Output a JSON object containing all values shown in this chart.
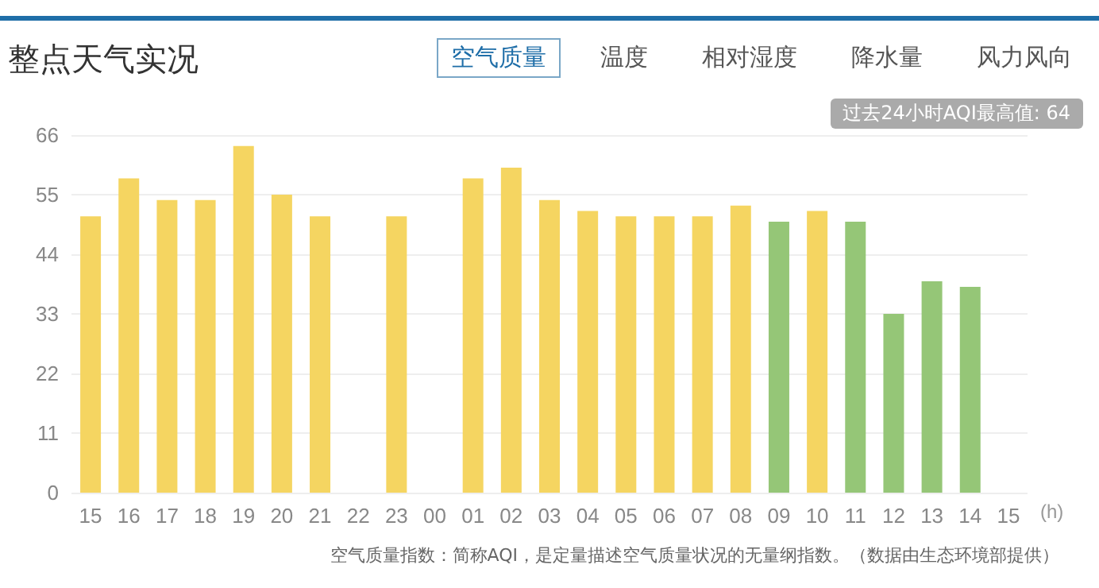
{
  "chart_data": {
    "type": "bar",
    "title": "整点天气实况",
    "xlabel": "(h)",
    "categories": [
      "15",
      "16",
      "17",
      "18",
      "19",
      "20",
      "21",
      "22",
      "23",
      "00",
      "01",
      "02",
      "03",
      "04",
      "05",
      "06",
      "07",
      "08",
      "09",
      "10",
      "11",
      "12",
      "13",
      "14",
      "15"
    ],
    "values": [
      51,
      58,
      54,
      54,
      64,
      55,
      51,
      null,
      51,
      null,
      58,
      60,
      54,
      52,
      51,
      51,
      51,
      53,
      50,
      52,
      50,
      33,
      39,
      38,
      null
    ],
    "colors": [
      "#f5d561",
      "#f5d561",
      "#f5d561",
      "#f5d561",
      "#f5d561",
      "#f5d561",
      "#f5d561",
      "#f5d561",
      "#f5d561",
      "#f5d561",
      "#f5d561",
      "#f5d561",
      "#f5d561",
      "#f5d561",
      "#f5d561",
      "#f5d561",
      "#f5d561",
      "#f5d561",
      "#95c677",
      "#f5d561",
      "#95c677",
      "#95c677",
      "#95c677",
      "#95c677",
      "#95c677"
    ],
    "ylim": [
      0,
      66
    ],
    "yticks": [
      0,
      11,
      22,
      33,
      44,
      55,
      66
    ],
    "grid": "y",
    "annotations": [
      "空气质量",
      "温度",
      "相对湿度",
      "降水量",
      "风力风向",
      "过去24小时AQI最高值: 64",
      "空气质量指数：简称AQI，是定量描述空气质量状况的无量纲指数。（数据由生态环境部提供）"
    ]
  }
}
